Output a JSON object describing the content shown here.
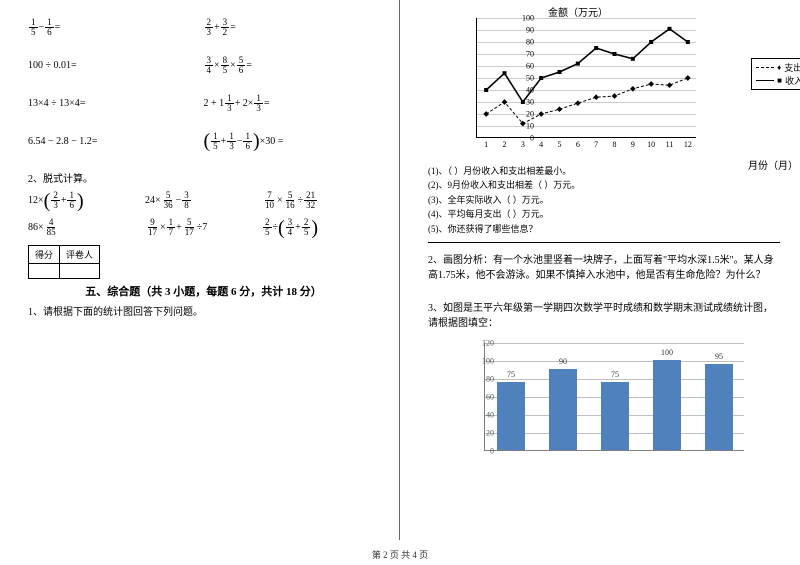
{
  "footer": "第 2 页 共 4 页",
  "left": {
    "equations_row": [
      {
        "a": "<f>1|5</f> − <f>1|6</f> =",
        "b": "<f>2|3</f> + <f>3|2</f> ="
      },
      {
        "a": "100 ÷ 0.01=",
        "b": "<f>3|4</f> × <f>8|5</f> × <f>5|6</f> ="
      },
      {
        "a": "13×4 ÷ 13×4=",
        "b": "2 + 1<f>1|3</f> + 2×<f>1|3</f> ="
      },
      {
        "a": "6.54 − 2.8 − 1.2=",
        "b": "<p>(</p><f>1|5</f> + <f>1|3</f> − <f>1|6</f><p>)</p>×30 ="
      }
    ],
    "q2_label": "2、脱式计算。",
    "q2_rows": [
      [
        "12×<p>(</p><f>2|3</f> + <f>1|6</f><p>)</p>",
        "24× <f>5|36</f> − <f>3|8</f>",
        "<f>7|10</f> × <f>5|16</f> ÷ <f>21|32</f>"
      ],
      [
        "86× <f>4|85</f>",
        "<f>9|17</f> × <f>1|7</f> + <f>5|17</f> ÷7",
        "<f>2|5</f> ÷<p>(</p><f>3|4</f> + <f>2|5</f><p>)</p>"
      ]
    ],
    "score_labels": [
      "得分",
      "评卷人"
    ],
    "sec5_title": "五、综合题（共 3 小题，每题 6 分，共计 18 分）",
    "q1_text": "1、请根据下面的统计图回答下列问题。"
  },
  "right": {
    "line_chart": {
      "y_title": "金额（万元）",
      "x_title": "月份（月）",
      "y_max": 100,
      "y_step": 10,
      "x_labels": [
        "1",
        "2",
        "3",
        "4",
        "5",
        "6",
        "7",
        "8",
        "9",
        "10",
        "11",
        "12"
      ],
      "series": [
        {
          "name": "支出",
          "style": "dash",
          "marker": "♦",
          "color": "#000000",
          "values": [
            20,
            30,
            12,
            20,
            24,
            29,
            34,
            35,
            41,
            45,
            44,
            50
          ]
        },
        {
          "name": "收入",
          "style": "solid",
          "marker": "■",
          "color": "#000000",
          "values": [
            40,
            54,
            30,
            50,
            55,
            62,
            75,
            70,
            66,
            80,
            91,
            80
          ]
        }
      ],
      "grid_color": "#cccccc",
      "axis_color": "#000000",
      "background": "#ffffff"
    },
    "sub_questions": [
      "(1)、（  ）月份收入和支出相差最小。",
      "(2)、9月份收入和支出相差（  ）万元。",
      "(3)、全年实际收入（  ）万元。",
      "(4)、平均每月支出（  ）万元。",
      "(5)、你还获得了哪些信息？"
    ],
    "q2_text": "2、画图分析：有一个水池里竖着一块牌子，上面写着\"平均水深1.5米\"。某人身高1.75米，他不会游泳。如果不慎掉入水池中，他是否有生命危险？为什么？",
    "q3_text": "3、如图是王平六年级第一学期四次数学平时成绩和数学期末测试成绩统计图，请根据图填空：",
    "bar_chart": {
      "y_max": 120,
      "y_step": 20,
      "bar_color": "#4f81bd",
      "grid_color": "#bfbfbf",
      "axis_color": "#7f7f7f",
      "label_color": "#333333",
      "background": "#ffffff",
      "bars": [
        {
          "label": "75",
          "value": 75
        },
        {
          "label": "90",
          "value": 90
        },
        {
          "label": "75",
          "value": 75
        },
        {
          "label": "100",
          "value": 100
        },
        {
          "label": "95",
          "value": 95
        }
      ]
    }
  }
}
